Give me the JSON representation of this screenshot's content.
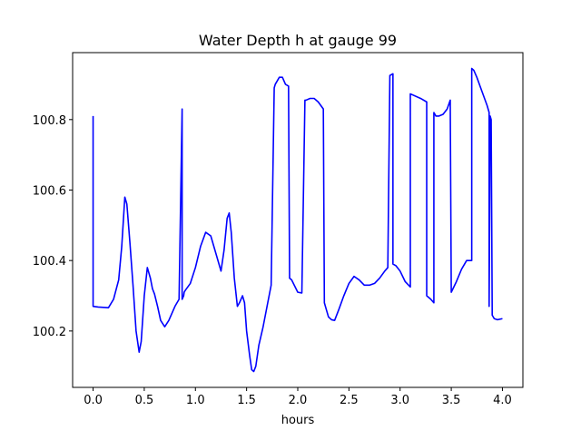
{
  "chart_data": {
    "type": "line",
    "title": "Water Depth h at gauge 99",
    "xlabel": "hours",
    "ylabel": "",
    "xlim": [
      -0.2,
      4.2
    ],
    "ylim": [
      100.04,
      100.99
    ],
    "xticks": [
      0.0,
      0.5,
      1.0,
      1.5,
      2.0,
      2.5,
      3.0,
      3.5,
      4.0
    ],
    "xtick_labels": [
      "0.0",
      "0.5",
      "1.0",
      "1.5",
      "2.0",
      "2.5",
      "3.0",
      "3.5",
      "4.0"
    ],
    "yticks": [
      100.2,
      100.4,
      100.6,
      100.8
    ],
    "ytick_labels": [
      "100.2",
      "100.4",
      "100.6",
      "100.8"
    ],
    "grid": false,
    "series": [
      {
        "color": "#0000ff",
        "x": [
          0.0,
          0.0,
          0.05,
          0.1,
          0.15,
          0.2,
          0.25,
          0.28,
          0.31,
          0.33,
          0.36,
          0.39,
          0.42,
          0.45,
          0.47,
          0.5,
          0.53,
          0.56,
          0.58,
          0.6,
          0.63,
          0.66,
          0.7,
          0.74,
          0.77,
          0.8,
          0.84,
          0.87,
          0.87,
          0.885,
          0.89,
          0.9,
          0.95,
          1.0,
          1.05,
          1.1,
          1.15,
          1.2,
          1.25,
          1.28,
          1.31,
          1.33,
          1.35,
          1.38,
          1.41,
          1.43,
          1.46,
          1.48,
          1.5,
          1.53,
          1.55,
          1.57,
          1.59,
          1.62,
          1.66,
          1.7,
          1.74,
          1.77,
          1.78,
          1.82,
          1.85,
          1.88,
          1.91,
          1.92,
          1.94,
          2.0,
          2.04,
          2.07,
          2.08,
          2.12,
          2.16,
          2.2,
          2.25,
          2.26,
          2.28,
          2.3,
          2.33,
          2.36,
          2.4,
          2.45,
          2.5,
          2.55,
          2.6,
          2.65,
          2.7,
          2.75,
          2.8,
          2.85,
          2.88,
          2.9,
          2.9,
          2.93,
          2.93,
          2.96,
          3.0,
          3.05,
          3.1,
          3.1,
          3.2,
          3.26,
          3.26,
          3.3,
          3.33,
          3.33,
          3.35,
          3.38,
          3.42,
          3.46,
          3.49,
          3.5,
          3.55,
          3.6,
          3.65,
          3.7,
          3.7,
          3.72,
          3.75,
          3.8,
          3.85,
          3.87,
          3.87,
          3.88,
          3.89,
          3.9,
          3.9,
          3.92,
          3.95,
          4.0
        ],
        "y": [
          100.81,
          100.27,
          100.268,
          100.267,
          100.266,
          100.29,
          100.345,
          100.44,
          100.58,
          100.56,
          100.45,
          100.33,
          100.2,
          100.14,
          100.17,
          100.3,
          100.38,
          100.35,
          100.32,
          100.305,
          100.27,
          100.23,
          100.212,
          100.23,
          100.25,
          100.27,
          100.29,
          100.83,
          100.29,
          100.3,
          100.31,
          100.315,
          100.335,
          100.38,
          100.44,
          100.48,
          100.47,
          100.42,
          100.37,
          100.43,
          100.52,
          100.535,
          100.48,
          100.35,
          100.27,
          100.28,
          100.3,
          100.28,
          100.2,
          100.13,
          100.09,
          100.085,
          100.1,
          100.16,
          100.21,
          100.27,
          100.33,
          100.89,
          100.9,
          100.92,
          100.92,
          100.9,
          100.895,
          100.35,
          100.345,
          100.31,
          100.308,
          100.855,
          100.855,
          100.86,
          100.86,
          100.85,
          100.83,
          100.28,
          100.26,
          100.24,
          100.232,
          100.23,
          100.26,
          100.3,
          100.335,
          100.355,
          100.345,
          100.33,
          100.33,
          100.335,
          100.35,
          100.37,
          100.38,
          100.925,
          100.925,
          100.93,
          100.39,
          100.385,
          100.37,
          100.34,
          100.325,
          100.873,
          100.86,
          100.85,
          100.3,
          100.29,
          100.28,
          100.82,
          100.81,
          100.81,
          100.815,
          100.83,
          100.855,
          100.31,
          100.34,
          100.375,
          100.4,
          100.4,
          100.945,
          100.94,
          100.92,
          100.88,
          100.84,
          100.82,
          100.27,
          100.81,
          100.8,
          100.26,
          100.245,
          100.235,
          100.232,
          100.235
        ]
      }
    ]
  }
}
